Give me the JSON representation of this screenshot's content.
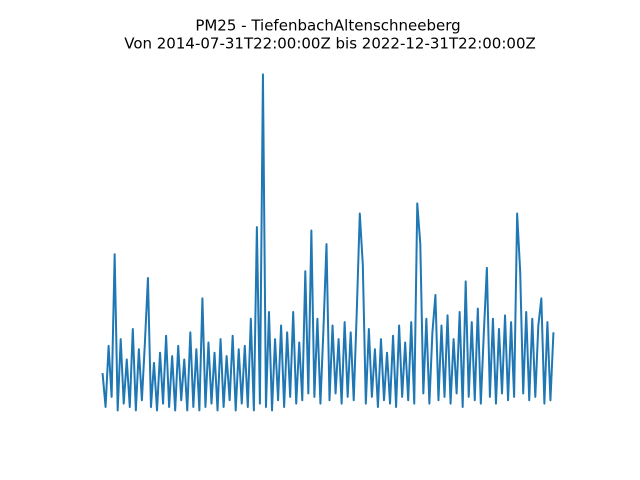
{
  "chart_data": {
    "type": "line",
    "title": "PM25 - TiefenbachAltenschneeberg",
    "subtitle": "Von 2014-07-31T22:00:00Z bis 2022-12-31T22:00:00Z",
    "color": "#1f77b4",
    "ylim": [
      -3.95,
      104.95
    ],
    "xlim": [
      -7.45,
      156.45
    ],
    "values": [
      12,
      2,
      20,
      5,
      47,
      1,
      22,
      3,
      16,
      2,
      25,
      1,
      19,
      4,
      21,
      40,
      2,
      15,
      1,
      18,
      3,
      23,
      2,
      17,
      1,
      20,
      4,
      16,
      1,
      24,
      2,
      19,
      1,
      34,
      2,
      21,
      3,
      18,
      1,
      22,
      2,
      17,
      4,
      23,
      1,
      19,
      3,
      20,
      2,
      28,
      1,
      55,
      3,
      100,
      2,
      30,
      1,
      22,
      4,
      26,
      2,
      24,
      5,
      30,
      3,
      21,
      4,
      42,
      6,
      54,
      5,
      28,
      3,
      25,
      50,
      4,
      26,
      6,
      22,
      3,
      27,
      5,
      24,
      4,
      30,
      59,
      44,
      3,
      25,
      5,
      19,
      2,
      22,
      4,
      18,
      3,
      23,
      2,
      26,
      5,
      21,
      4,
      27,
      3,
      62,
      50,
      6,
      28,
      3,
      24,
      35,
      4,
      26,
      5,
      29,
      3,
      22,
      6,
      30,
      2,
      39,
      5,
      27,
      4,
      31,
      3,
      24,
      43,
      5,
      28,
      3,
      25,
      6,
      29,
      4,
      27,
      5,
      59,
      42,
      6,
      30,
      4,
      28,
      5,
      26,
      34,
      3,
      27,
      4,
      24
    ]
  }
}
